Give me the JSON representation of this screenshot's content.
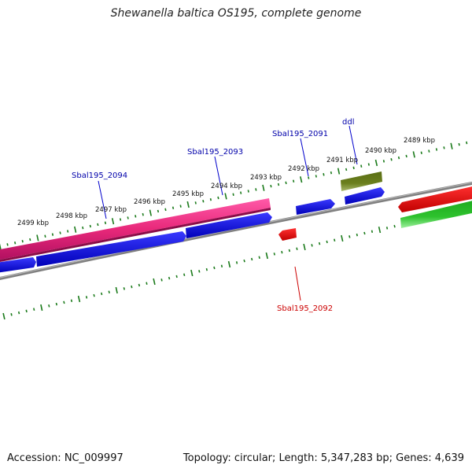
{
  "title": "Shewanella baltica OS195, complete genome",
  "footer": {
    "accession": "Accession: NC_009997",
    "summary": "Topology: circular; Length: 5,347,283 bp; Genes: 4,639"
  },
  "colors": {
    "backbone": "#808080",
    "tick": "#1a7a1a",
    "forward_cds": "#0000e6",
    "reverse_cds": "#e60000",
    "pink_gene": "#e8287a",
    "olive_gene": "#6b7f1e",
    "green_gene": "#2ec22e",
    "forward_label": "#0000aa",
    "reverse_label": "#cc0000"
  },
  "ticks": {
    "labels": [
      "2489 kbp",
      "2490 kbp",
      "2491 kbp",
      "2492 kbp",
      "2493 kbp",
      "2494 kbp",
      "2495 kbp",
      "2496 kbp",
      "2497 kbp",
      "2498 kbp",
      "2499 kbp"
    ]
  },
  "genes": [
    {
      "name": "ddl",
      "strand": "forward"
    },
    {
      "name": "Sbal195_2091",
      "strand": "forward"
    },
    {
      "name": "Sbal195_2092",
      "strand": "reverse"
    },
    {
      "name": "Sbal195_2093",
      "strand": "forward"
    },
    {
      "name": "Sbal195_2094",
      "strand": "forward"
    }
  ]
}
